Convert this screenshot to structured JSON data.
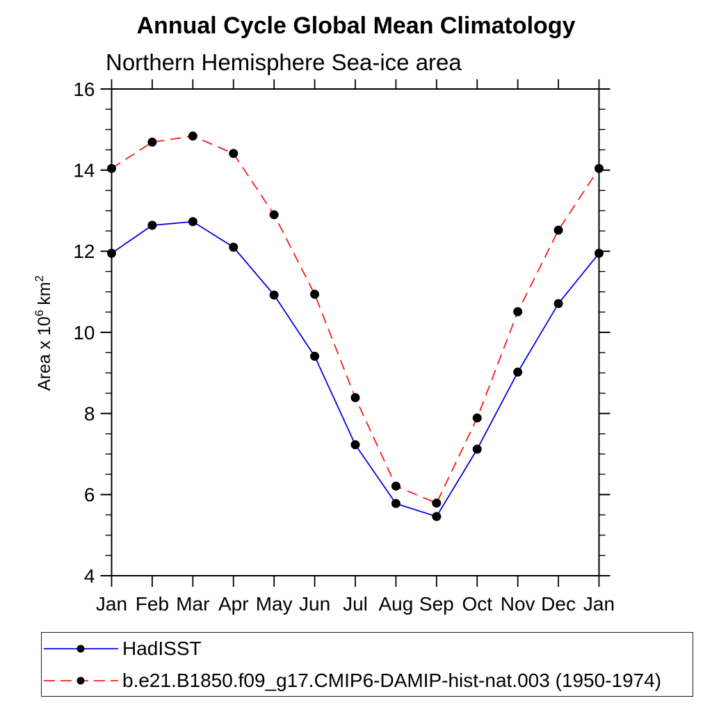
{
  "chart_data": {
    "type": "line",
    "title": "Annual Cycle Global Mean Climatology",
    "subtitle": "Northern Hemisphere Sea-ice area",
    "ylabel": "Area x 10⁶ km²",
    "ylabel_parts": [
      {
        "text": "Area x 10",
        "sup": false
      },
      {
        "text": "6",
        "sup": true
      },
      {
        "text": " km",
        "sup": false
      },
      {
        "text": "2",
        "sup": true
      }
    ],
    "categories": [
      "Jan",
      "Feb",
      "Mar",
      "Apr",
      "May",
      "Jun",
      "Jul",
      "Aug",
      "Sep",
      "Oct",
      "Nov",
      "Dec",
      "Jan"
    ],
    "series": [
      {
        "name": "HadISST",
        "color": "#0202dd",
        "line_style": "solid",
        "marker": "dot",
        "marker_color": "#000000",
        "values": [
          11.95,
          12.64,
          12.73,
          12.1,
          10.92,
          9.41,
          7.23,
          5.78,
          5.46,
          7.12,
          9.02,
          10.71,
          11.95
        ]
      },
      {
        "name": "b.e21.B1850.f09_g17.CMIP6-DAMIP-hist-nat.003 (1950-1974)",
        "color": "#fb1717",
        "line_style": "dashed",
        "marker": "dot",
        "marker_color": "#000000",
        "values": [
          14.04,
          14.69,
          14.84,
          14.41,
          12.9,
          10.94,
          8.39,
          6.21,
          5.79,
          7.89,
          10.51,
          12.52,
          14.04
        ]
      }
    ],
    "ylim": [
      4,
      16
    ],
    "ytick_major_step": 2,
    "ytick_minor_step": 0.5,
    "ytick_labels": [
      "4",
      "6",
      "8",
      "10",
      "12",
      "14",
      "16"
    ],
    "grid": false,
    "legend_position": "bottom-left",
    "axis_color": "#000000"
  }
}
